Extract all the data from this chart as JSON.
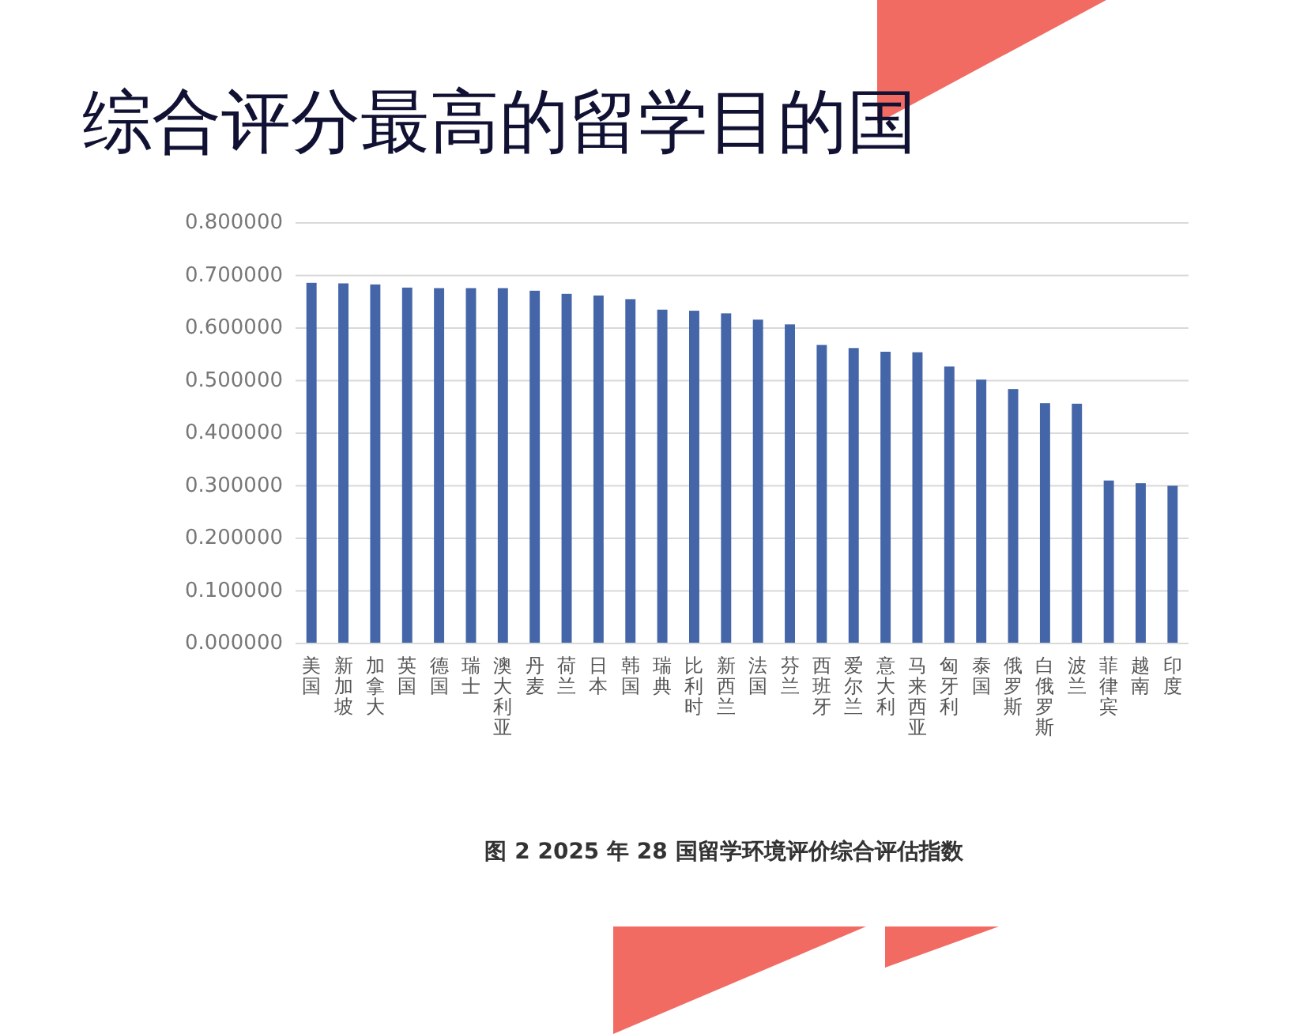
{
  "chart_data": {
    "type": "bar",
    "title": "综合评分最高的留学目的国",
    "categories": [
      "美国",
      "新加坡",
      "加拿大",
      "英国",
      "德国",
      "瑞士",
      "澳大利亚",
      "丹麦",
      "荷兰",
      "日本",
      "韩国",
      "瑞典",
      "比利时",
      "新西兰",
      "法国",
      "芬兰",
      "西班牙",
      "爱尔兰",
      "意大利",
      "马来西亚",
      "匈牙利",
      "泰国",
      "俄罗斯",
      "白俄罗斯",
      "波兰",
      "菲律宾",
      "越南",
      "印度"
    ],
    "values": [
      0.686,
      0.685,
      0.683,
      0.677,
      0.676,
      0.676,
      0.676,
      0.671,
      0.665,
      0.662,
      0.655,
      0.635,
      0.633,
      0.628,
      0.616,
      0.607,
      0.568,
      0.562,
      0.555,
      0.554,
      0.527,
      0.502,
      0.484,
      0.457,
      0.456,
      0.31,
      0.305,
      0.3
    ],
    "color": "#4466a8",
    "ylim": [
      0,
      0.8
    ],
    "yticks": [
      {
        "value": 0,
        "label": "0.000000"
      },
      {
        "value": 0.1,
        "label": "0.100000"
      },
      {
        "value": 0.2,
        "label": "0.200000"
      },
      {
        "value": 0.3,
        "label": "0.300000"
      },
      {
        "value": 0.4,
        "label": "0.400000"
      },
      {
        "value": 0.5,
        "label": "0.500000"
      },
      {
        "value": 0.6,
        "label": "0.600000"
      },
      {
        "value": 0.7,
        "label": "0.700000"
      },
      {
        "value": 0.8,
        "label": "0.800000"
      }
    ],
    "grid": "y",
    "annotations": [
      "图 2 2025 年 28 国留学环境评价综合评估指数"
    ]
  }
}
